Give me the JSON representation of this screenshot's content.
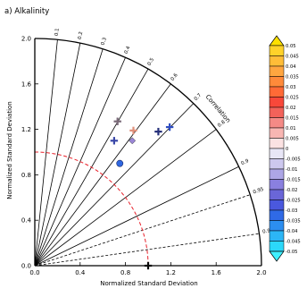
{
  "chart_data": {
    "type": "taylor-diagram",
    "title": "a)  Alkalinity",
    "xlabel": "Normalized Standard Deviation",
    "ylabel": "Normalized Standard Deviation",
    "std_range": [
      0,
      2.0
    ],
    "x_ticks": [
      "0.0",
      "0.4",
      "0.8",
      "1.2",
      "1.6",
      "2.0"
    ],
    "y_ticks": [
      "0.0",
      "0.4",
      "0.8",
      "1.2",
      "1.6",
      "2.0"
    ],
    "correlation_label": "Correlation",
    "correlation_ticks": [
      {
        "r": 0.1,
        "label": "0.1"
      },
      {
        "r": 0.2,
        "label": "0.2"
      },
      {
        "r": 0.3,
        "label": "0.3"
      },
      {
        "r": 0.4,
        "label": "0.4"
      },
      {
        "r": 0.5,
        "label": "0.5"
      },
      {
        "r": 0.6,
        "label": "0.6"
      },
      {
        "r": 0.7,
        "label": "0.7"
      },
      {
        "r": 0.8,
        "label": "0.8"
      },
      {
        "r": 0.9,
        "label": "0.9"
      },
      {
        "r": 0.95,
        "label": "0.95",
        "dashed": true
      },
      {
        "r": 0.99,
        "label": "0.99",
        "dashed": true
      }
    ],
    "reference_std": 1.0,
    "reference_arc_color": "#e8202a",
    "points": [
      {
        "x": 0.73,
        "y": 1.27,
        "marker": "plus",
        "color": "#7a6a78"
      },
      {
        "x": 0.87,
        "y": 1.19,
        "marker": "plus",
        "color": "#e0907a"
      },
      {
        "x": 1.09,
        "y": 1.18,
        "marker": "plus",
        "color": "#26307a"
      },
      {
        "x": 1.19,
        "y": 1.22,
        "marker": "plus",
        "color": "#2e4cc0"
      },
      {
        "x": 0.7,
        "y": 1.1,
        "marker": "plus",
        "color": "#3a48a8"
      },
      {
        "x": 0.86,
        "y": 1.1,
        "marker": "diamond",
        "color": "#9a86d6"
      },
      {
        "x": 0.75,
        "y": 0.9,
        "marker": "circle",
        "color": "#2f67e0"
      },
      {
        "x": 1.0,
        "y": 0.0,
        "marker": "plus",
        "color": "#0a0a0a"
      }
    ],
    "colorbar": {
      "labels": [
        "0.05",
        "0.045",
        "0.04",
        "0.035",
        "0.03",
        "0.025",
        "0.02",
        "0.015",
        "0.01",
        "0.005",
        "0",
        "-0.005",
        "-0.01",
        "-0.015",
        "-0.02",
        "-0.025",
        "-0.03",
        "-0.035",
        "-0.04",
        "-0.045",
        "-0.05"
      ],
      "colors": [
        "#ffe000",
        "#ffd22a",
        "#ffbd38",
        "#ffa640",
        "#ff8a3a",
        "#ff6a36",
        "#f8483a",
        "#f2625a",
        "#f48a86",
        "#f8b6b2",
        "#fbe2e2",
        "#e8e6f6",
        "#cdc8ee",
        "#ada6e6",
        "#8a80df",
        "#6a66d8",
        "#4a58de",
        "#2f6ae6",
        "#2c8ef0",
        "#2cb6f6",
        "#2bd8fa",
        "#40f0ff"
      ]
    }
  }
}
